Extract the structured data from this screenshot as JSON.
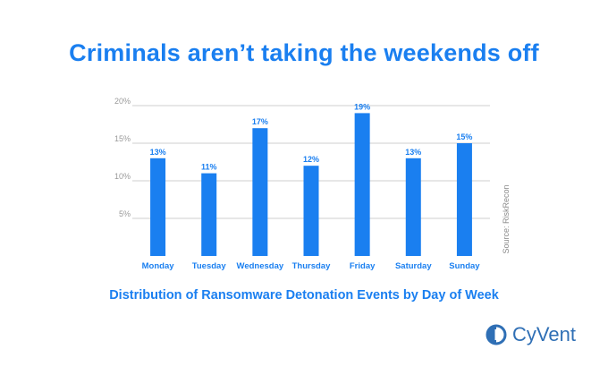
{
  "headline": "Criminals aren’t taking the weekends off",
  "subtitle": "Distribution of Ransomware Detonation Events by Day of Week",
  "source": "Source: RiskRecon",
  "logo": {
    "text": "CyVent",
    "icon": "cyvent-logo-icon"
  },
  "colors": {
    "accent": "#1a7ff0",
    "brand": "#2f6fb5",
    "grid": "#cfcfcf",
    "tick_text": "#9a9a9a"
  },
  "chart_data": {
    "type": "bar",
    "categories": [
      "Monday",
      "Tuesday",
      "Wednesday",
      "Thursday",
      "Friday",
      "Saturday",
      "Sunday"
    ],
    "values": [
      13,
      11,
      17,
      12,
      19,
      13,
      15
    ],
    "value_labels": [
      "13%",
      "11%",
      "17%",
      "12%",
      "19%",
      "13%",
      "15%"
    ],
    "y_ticks": [
      5,
      10,
      15,
      20
    ],
    "y_tick_labels": [
      "5%",
      "10%",
      "15%",
      "20%"
    ],
    "ylim": [
      0,
      20
    ],
    "grid": true,
    "legend": false
  }
}
